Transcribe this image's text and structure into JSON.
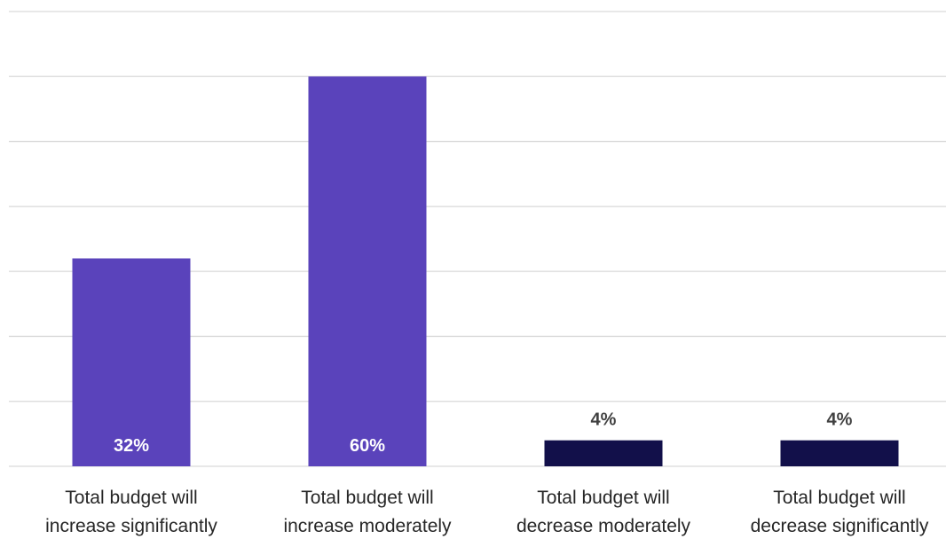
{
  "chart_data": {
    "type": "bar",
    "categories": [
      [
        "Total budget will",
        "increase significantly"
      ],
      [
        "Total budget will",
        "increase moderately"
      ],
      [
        "Total budget will",
        "decrease moderately"
      ],
      [
        "Total budget will",
        "decrease significantly"
      ]
    ],
    "values": [
      32,
      60,
      4,
      4
    ],
    "value_labels": [
      "32%",
      "60%",
      "4%",
      "4%"
    ],
    "bar_colors": [
      "#5a43bb",
      "#5a43bb",
      "#12104a",
      "#12104a"
    ],
    "label_inside": [
      true,
      true,
      false,
      false
    ],
    "ylim": [
      0,
      70
    ],
    "y_tick_step": 10,
    "grid": true,
    "title": "",
    "xlabel": "",
    "ylabel": ""
  }
}
